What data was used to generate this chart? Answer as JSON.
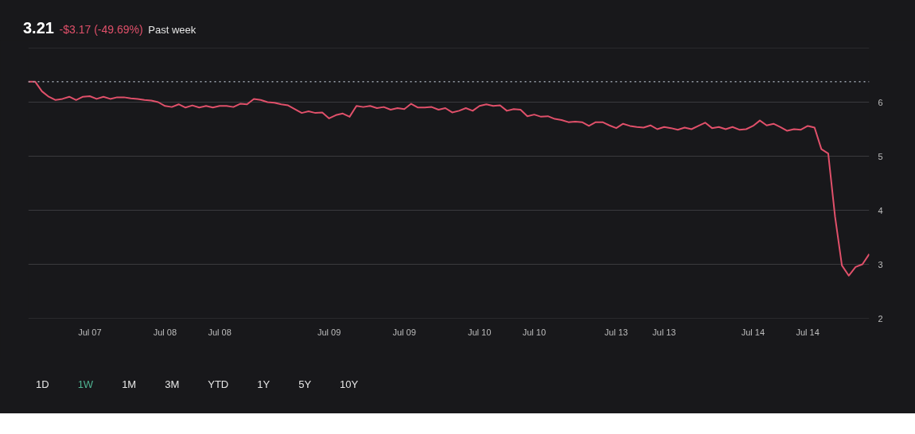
{
  "chart_data": {
    "type": "line",
    "title": "3.21",
    "subtitle": "-$3.17 (-49.69%)",
    "annotations": [
      "Past week",
      "1D",
      "1W",
      "1M",
      "3M",
      "YTD",
      "1Y",
      "5Y",
      "10Y"
    ],
    "categories": [
      null,
      null,
      null,
      null,
      null,
      null,
      null,
      null,
      null,
      "Jul 07",
      null,
      null,
      null,
      null,
      null,
      null,
      null,
      null,
      null,
      null,
      "Jul 08",
      null,
      null,
      null,
      null,
      null,
      null,
      null,
      "Jul 08",
      null,
      null,
      null,
      null,
      null,
      null,
      null,
      null,
      null,
      null,
      null,
      null,
      null,
      null,
      null,
      "Jul 09",
      null,
      null,
      null,
      null,
      null,
      null,
      null,
      null,
      null,
      null,
      "Jul 09",
      null,
      null,
      null,
      null,
      null,
      null,
      null,
      null,
      null,
      null,
      "Jul 10",
      null,
      null,
      null,
      null,
      null,
      null,
      null,
      "Jul 10",
      null,
      null,
      null,
      null,
      null,
      null,
      null,
      null,
      null,
      null,
      null,
      "Jul 13",
      null,
      null,
      null,
      null,
      null,
      null,
      "Jul 13",
      null,
      null,
      null,
      null,
      null,
      null,
      null,
      null,
      null,
      null,
      null,
      null,
      "Jul 14",
      null,
      null,
      null,
      null,
      null,
      null,
      null,
      "Jul 14",
      null,
      null,
      null,
      null,
      null,
      null,
      null,
      null,
      null
    ],
    "series": [
      {
        "color": "#e0506a",
        "values": [
          6.38,
          6.38,
          6.2,
          6.1,
          6.04,
          6.06,
          6.1,
          6.04,
          6.1,
          6.11,
          6.06,
          6.1,
          6.06,
          6.09,
          6.09,
          6.07,
          6.06,
          6.04,
          6.03,
          6.0,
          5.93,
          5.91,
          5.96,
          5.9,
          5.94,
          5.9,
          5.93,
          5.9,
          5.93,
          5.93,
          5.91,
          5.97,
          5.96,
          6.06,
          6.04,
          6.0,
          5.99,
          5.96,
          5.94,
          5.87,
          5.8,
          5.83,
          5.8,
          5.81,
          5.7,
          5.76,
          5.79,
          5.73,
          5.93,
          5.91,
          5.93,
          5.89,
          5.91,
          5.86,
          5.89,
          5.87,
          5.97,
          5.9,
          5.9,
          5.91,
          5.86,
          5.89,
          5.81,
          5.84,
          5.89,
          5.84,
          5.93,
          5.96,
          5.93,
          5.94,
          5.84,
          5.87,
          5.86,
          5.74,
          5.77,
          5.73,
          5.74,
          5.69,
          5.67,
          5.63,
          5.64,
          5.63,
          5.56,
          5.63,
          5.63,
          5.57,
          5.52,
          5.6,
          5.56,
          5.54,
          5.53,
          5.57,
          5.5,
          5.54,
          5.52,
          5.49,
          5.53,
          5.5,
          5.56,
          5.62,
          5.52,
          5.54,
          5.5,
          5.54,
          5.49,
          5.5,
          5.56,
          5.66,
          5.57,
          5.6,
          5.54,
          5.47,
          5.5,
          5.49,
          5.56,
          5.53,
          5.13,
          5.05,
          3.88,
          2.98,
          2.79,
          2.95,
          3.0,
          3.19
        ]
      }
    ],
    "ylim": [
      2,
      7
    ],
    "yticks": [
      2,
      3,
      4,
      5,
      6,
      {
        "value": 7,
        "label": null
      }
    ],
    "grid": "y",
    "line_style": "solid",
    "ref_lines": [
      {
        "axis": "y",
        "value": 6.38,
        "color": "#9ca3af",
        "line_style": "dotted"
      }
    ]
  }
}
